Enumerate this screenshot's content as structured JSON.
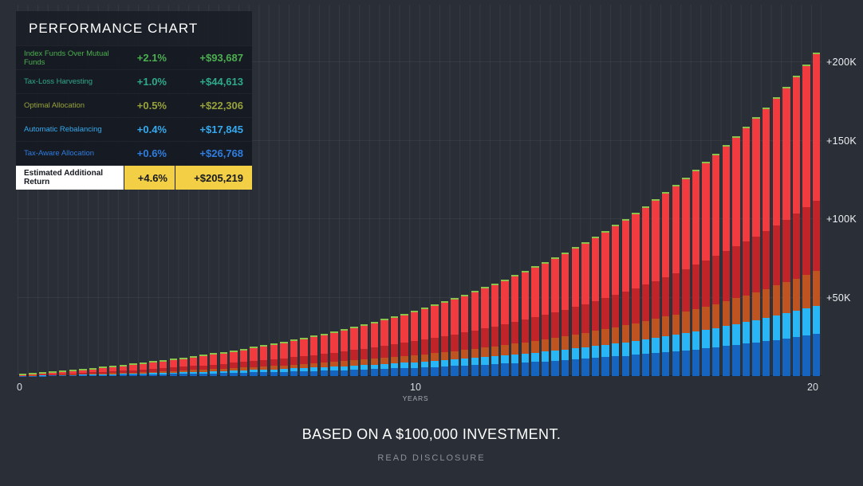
{
  "legend": {
    "title": "PERFORMANCE CHART",
    "rows": [
      {
        "label": "Index Funds Over Mutual Funds",
        "percent": "+2.1%",
        "amount": "+$93,687",
        "color": "#4caf50"
      },
      {
        "label": "Tax-Loss Harvesting",
        "percent": "+1.0%",
        "amount": "+$44,613",
        "color": "#2fa98c"
      },
      {
        "label": "Optimal Allocation",
        "percent": "+0.5%",
        "amount": "+$22,306",
        "color": "#97a23b"
      },
      {
        "label": "Automatic Rebalancing",
        "percent": "+0.4%",
        "amount": "+$17,845",
        "color": "#36a9ee"
      },
      {
        "label": "Tax-Aware Allocation",
        "percent": "+0.6%",
        "amount": "+$26,768",
        "color": "#2f7de0"
      }
    ],
    "total_row": {
      "label": "Estimated Additional Return",
      "percent": "+4.6%",
      "amount": "+$205,219",
      "label_bg": "#ffffff",
      "highlight_bg": "#f2cf44"
    }
  },
  "chart_data": {
    "type": "bar",
    "stacked": true,
    "title": "PERFORMANCE CHART",
    "x_axis_label": "YEARS",
    "x_ticks": [
      {
        "label": "0",
        "year": 0
      },
      {
        "label": "10",
        "year": 10
      },
      {
        "label": "20",
        "year": 20
      }
    ],
    "y_ticks": [
      {
        "label": "+50K",
        "value": 50000
      },
      {
        "label": "+100K",
        "value": 100000
      },
      {
        "label": "+150K",
        "value": 150000
      },
      {
        "label": "+200K",
        "value": 200000
      }
    ],
    "ylim": [
      0,
      236000
    ],
    "bars": 80,
    "years": 20,
    "growth_rate_annual": 1.15,
    "initial_investment": 100000,
    "final_total": 205219,
    "series": [
      {
        "name": "Tax-Aware Allocation",
        "final_value": 26768,
        "percent": 0.6,
        "color": "#1565c0"
      },
      {
        "name": "Automatic Rebalancing",
        "final_value": 17845,
        "percent": 0.4,
        "color": "#29b6f6"
      },
      {
        "name": "Optimal Allocation",
        "final_value": 22306,
        "percent": 0.5,
        "color": "#bf5420"
      },
      {
        "name": "Tax-Loss Harvesting",
        "final_value": 44613,
        "percent": 1.0,
        "color": "#c02428"
      },
      {
        "name": "Index Funds Over Mutual Funds",
        "final_value": 93687,
        "percent": 2.1,
        "color": "#f23b3f"
      }
    ],
    "top_cap_color": "#8bc34a",
    "yearly_totals": [
      0,
      2003,
      4307,
      6956,
      10003,
      13506,
      17536,
      22169,
      27498,
      33626,
      40673,
      48777,
      58097,
      68815,
      81140,
      95314,
      111614,
      130358,
      151916,
      176706,
      205219
    ],
    "legend_position": "top-left",
    "grid": true
  },
  "footer": {
    "caption": "BASED ON A $100,000 INVESTMENT.",
    "disclosure": "READ DISCLOSURE"
  },
  "colors": {
    "background": "#2a2f37",
    "axis_text": "#eef0f3",
    "grid_line": "rgba(255,255,255,0.05)"
  }
}
